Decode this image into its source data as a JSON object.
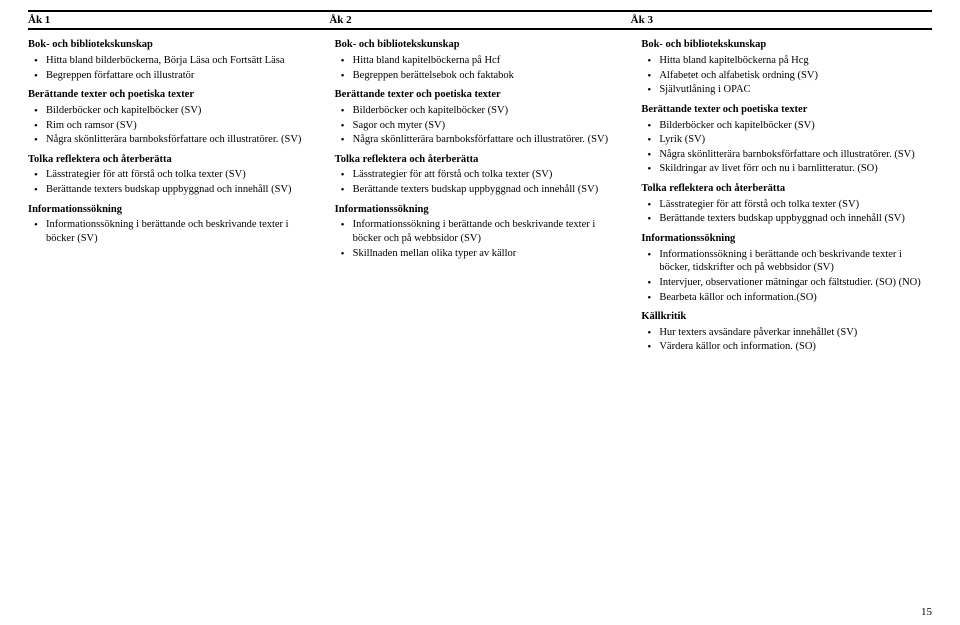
{
  "header": {
    "c1": "Åk 1",
    "c2": "Åk 2",
    "c3": "Åk 3"
  },
  "col1": {
    "s1": {
      "title": "Bok- och bibliotekskunskap",
      "items": [
        "Hitta bland bilderböckerna, Börja Läsa och Fortsätt Läsa",
        "Begreppen författare och illustratör"
      ]
    },
    "s2": {
      "title": "Berättande texter och poetiska texter",
      "items": [
        "Bilderböcker och kapitelböcker (SV)",
        "Rim och ramsor (SV)",
        "Några skönlitterära barnboksförfattare och illustratörer. (SV)"
      ]
    },
    "s3": {
      "title": "Tolka reflektera och återberätta",
      "items": [
        "Lässtrategier för att förstå och tolka texter (SV)",
        "Berättande texters budskap uppbyggnad och innehåll (SV)"
      ]
    },
    "s4": {
      "title": "Informationssökning",
      "items": [
        "Informationssökning i berättande och beskrivande texter i böcker (SV)"
      ]
    }
  },
  "col2": {
    "s1": {
      "title": "Bok- och bibliotekskunskap",
      "items": [
        "Hitta bland kapitelböckerna på Hcf",
        "Begreppen berättelsebok och faktabok"
      ]
    },
    "s2": {
      "title": "Berättande texter och poetiska texter",
      "items": [
        "Bilderböcker och kapitelböcker (SV)",
        "Sagor och myter (SV)",
        "Några skönlitterära barnboksförfattare och illustratörer. (SV)"
      ]
    },
    "s3": {
      "title": "Tolka reflektera och återberätta",
      "items": [
        "Lässtrategier för att förstå och tolka texter (SV)",
        "Berättande texters budskap uppbyggnad och innehåll (SV)"
      ]
    },
    "s4": {
      "title": "Informationssökning",
      "items": [
        "Informationssökning i berättande och beskrivande texter i böcker och på webbsidor (SV)",
        "Skillnaden mellan olika typer av källor"
      ]
    }
  },
  "col3": {
    "s1": {
      "title": "Bok- och bibliotekskunskap",
      "items": [
        "Hitta bland kapitelböckerna på Hcg",
        "Alfabetet och alfabetisk ordning (SV)",
        "Självutlåning i OPAC"
      ]
    },
    "s2": {
      "title": "Berättande texter och poetiska texter",
      "items": [
        "Bilderböcker och kapitelböcker (SV)",
        "Lyrik (SV)",
        "Några skönlitterära barnboksförfattare och illustratörer. (SV)",
        "Skildringar av livet förr och nu i barnlitteratur. (SO)"
      ]
    },
    "s3": {
      "title": "Tolka reflektera och återberätta",
      "items": [
        "Lässtrategier för att förstå och tolka texter (SV)",
        "Berättande texters budskap uppbyggnad och innehåll (SV)"
      ]
    },
    "s4": {
      "title": "Informationssökning",
      "items": [
        "Informationssökning i berättande och beskrivande texter i böcker, tidskrifter och på webbsidor (SV)",
        "Intervjuer, observationer mätningar och fältstudier. (SO) (NO)",
        "Bearbeta källor och information.(SO)"
      ]
    },
    "s5": {
      "title": "Källkritik",
      "items": [
        "Hur texters avsändare påverkar innehållet (SV)",
        "Värdera källor och information. (SO)"
      ]
    }
  },
  "pageNumber": "15"
}
